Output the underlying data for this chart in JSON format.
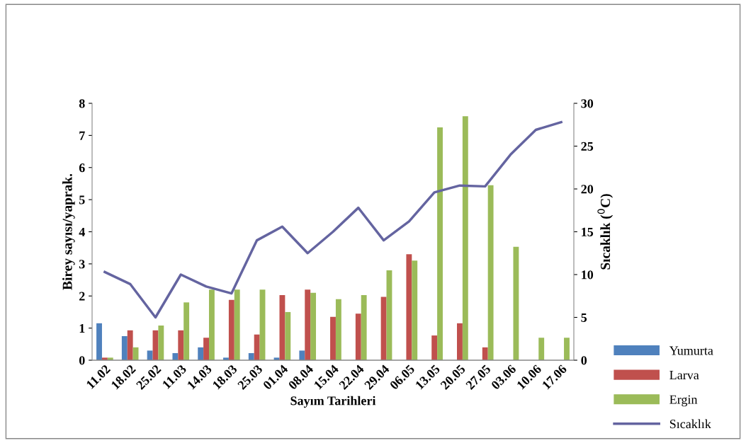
{
  "chart_data": {
    "type": "bar",
    "xlabel": "Sayım Tarihleri",
    "ylabel": "Birey sayısı/yaprak.",
    "y2label": "Sıcaklık ($^{0}$C)",
    "categories": [
      "11.02",
      "18.02",
      "25.02",
      "11.03",
      "14.03",
      "18.03",
      "25.03",
      "01.04",
      "08.04",
      "15.04",
      "22.04",
      "29.04",
      "06.05",
      "13.05",
      "20.05",
      "27.05",
      "03.06",
      "10.06",
      "17.06"
    ],
    "series": [
      {
        "name": "Yumurta",
        "color": "#4f81bd",
        "values": [
          1.15,
          0.75,
          0.3,
          0.22,
          0.4,
          0.08,
          0.22,
          0.08,
          0.3,
          0,
          0,
          0,
          0,
          0,
          0,
          0,
          0,
          0,
          0
        ]
      },
      {
        "name": "Larva",
        "color": "#c0504d",
        "values": [
          0.08,
          0.93,
          0.93,
          0.93,
          0.7,
          1.88,
          0.8,
          2.03,
          2.2,
          1.35,
          1.45,
          1.97,
          3.3,
          0.77,
          1.15,
          0.4,
          0,
          0,
          0
        ]
      },
      {
        "name": "Ergin",
        "color": "#9bbb59",
        "values": [
          0.08,
          0.4,
          1.08,
          1.8,
          2.2,
          2.2,
          2.2,
          1.5,
          2.1,
          1.9,
          2.03,
          2.8,
          3.1,
          7.25,
          7.6,
          5.45,
          3.53,
          0.7,
          0.7
        ]
      },
      {
        "name": "Sıcaklık",
        "color": "#6464a0",
        "type": "line",
        "axis": "y2",
        "values": [
          10.3,
          8.9,
          5.0,
          10.0,
          8.6,
          7.8,
          14.0,
          15.6,
          12.5,
          15.0,
          17.8,
          14.0,
          16.2,
          19.6,
          20.4,
          20.3,
          24.0,
          26.9,
          27.8
        ]
      }
    ],
    "ylim": [
      0,
      8
    ],
    "yticks": [
      0,
      1,
      2,
      3,
      4,
      5,
      6,
      7,
      8
    ],
    "y2lim": [
      0,
      30
    ],
    "y2ticks": [
      0,
      5,
      10,
      15,
      20,
      25,
      30
    ],
    "grid": false,
    "legend": "bottom right",
    "marker": "none"
  }
}
